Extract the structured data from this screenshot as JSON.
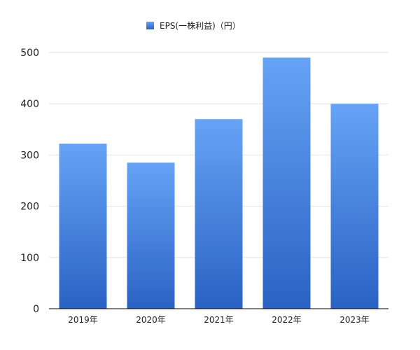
{
  "chart_data": {
    "type": "bar",
    "categories": [
      "2019年",
      "2020年",
      "2021年",
      "2022年",
      "2023年"
    ],
    "series": [
      {
        "name": "EPS(一株利益)（円）",
        "values": [
          322,
          285,
          370,
          490,
          400
        ]
      }
    ],
    "ylim": [
      0,
      500
    ],
    "yticks": [
      "0",
      "100",
      "200",
      "300",
      "400",
      "500"
    ],
    "grid": true,
    "legend_position": "top-center",
    "colors": {
      "bar_top": "#66a3f5",
      "bar_bottom": "#2a62c4",
      "grid": "#e2e2e2",
      "axis": "#000000"
    }
  }
}
